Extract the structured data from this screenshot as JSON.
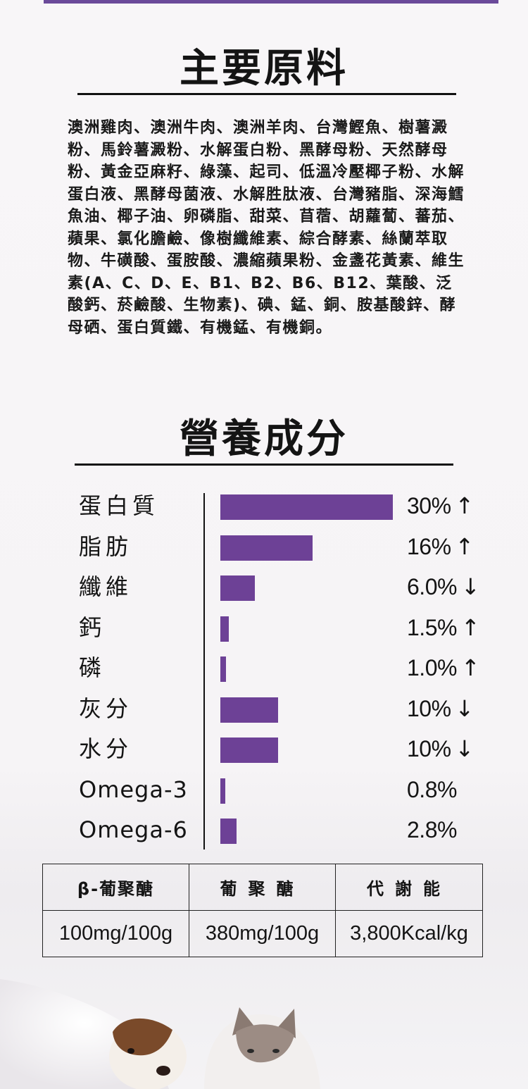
{
  "ingredients_section": {
    "title": "主要原料",
    "text": "澳洲雞肉、澳洲牛肉、澳洲羊肉、台灣鰹魚、樹薯澱粉、馬鈴薯澱粉、水解蛋白粉、黑酵母粉、天然酵母粉、黃金亞麻籽、綠藻、起司、低溫冷壓椰子粉、水解蛋白液、黑酵母菌液、水解胜肽液、台灣豬脂、深海鱈魚油、椰子油、卵磷脂、甜菜、苜蓿、胡蘿蔔、蕃茄、蘋果、氯化膽鹼、像樹纖維素、綜合酵素、絲蘭萃取物、牛磺酸、蛋胺酸、濃縮蘋果粉、金盞花黃素、維生素(A、C、D、E、B1、B2、B6、B12、葉酸、泛酸鈣、菸鹼酸、生物素)、碘、錳、銅、胺基酸鋅、酵母硒、蛋白質鐵、有機錳、有機銅。"
  },
  "nutrition_section": {
    "title": "營養成分",
    "items": [
      {
        "label": "蛋白質",
        "value": "30%",
        "arrow": "↑",
        "amount": 30
      },
      {
        "label": "脂肪",
        "value": "16%",
        "arrow": "↑",
        "amount": 16
      },
      {
        "label": "纖維",
        "value": "6.0%",
        "arrow": "↓",
        "amount": 6.0
      },
      {
        "label": "鈣",
        "value": "1.5%",
        "arrow": "↑",
        "amount": 1.5
      },
      {
        "label": "磷",
        "value": "1.0%",
        "arrow": "↑",
        "amount": 1.0
      },
      {
        "label": "灰分",
        "value": "10%",
        "arrow": "↓",
        "amount": 10
      },
      {
        "label": "水分",
        "value": "10%",
        "arrow": "↓",
        "amount": 10
      },
      {
        "label": "Omega-3",
        "value": "0.8%",
        "arrow": "",
        "amount": 0.8
      },
      {
        "label": "Omega-6",
        "value": "2.8%",
        "arrow": "",
        "amount": 2.8
      }
    ],
    "bar_color": "#6d4196"
  },
  "spec_table": {
    "headers": [
      "β-葡聚醣",
      "葡聚醣",
      "代謝能"
    ],
    "values": [
      "100mg/100g",
      "380mg/100g",
      "3,800Kcal/kg"
    ]
  },
  "decor": {
    "accent": "#6b4a9a",
    "image": "puppy-and-kitten-photo"
  }
}
